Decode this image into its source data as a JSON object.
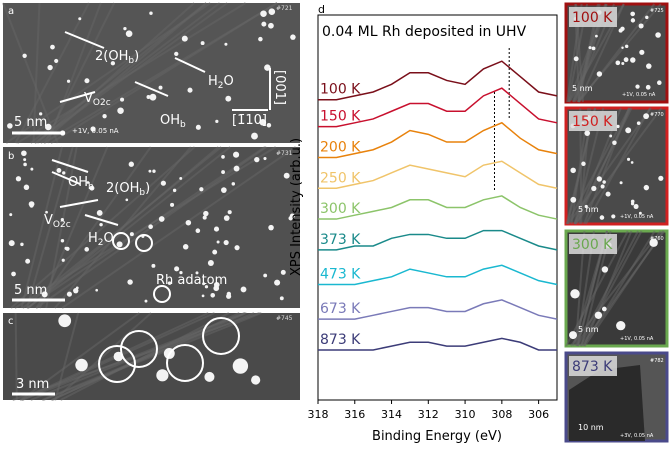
{
  "chart_data": {
    "type": "line",
    "panel_label": "d",
    "title": "0.04 ML Rh deposited in UHV",
    "x_label": "Binding Energy (eV)",
    "y_label": "XPS Intensity (arb.u.)",
    "x": [
      318,
      317,
      316,
      315,
      314,
      313,
      312,
      311,
      310,
      309,
      308,
      307,
      306,
      305
    ],
    "xlim": [
      318,
      305
    ],
    "xticks": [
      318,
      316,
      314,
      312,
      310,
      308,
      306
    ],
    "ylim": [
      0,
      100
    ],
    "reference_lines": [
      308.4,
      307.6
    ],
    "series": [
      {
        "name": "100 K",
        "color": "#7a0f1a",
        "values": [
          78,
          78,
          79,
          80,
          82,
          85,
          85,
          83,
          82,
          86,
          88,
          84,
          80,
          79
        ]
      },
      {
        "name": "150 K",
        "color": "#c8102e",
        "values": [
          71,
          71,
          72,
          73,
          75,
          77,
          77,
          75,
          75,
          79,
          81,
          77,
          73,
          72
        ]
      },
      {
        "name": "200 K",
        "color": "#e8820c",
        "values": [
          63,
          63,
          64,
          65,
          67,
          70,
          69,
          67,
          67,
          70,
          72,
          68,
          65,
          64
        ]
      },
      {
        "name": "250 K",
        "color": "#f0c46a",
        "values": [
          55,
          55,
          56,
          57,
          59,
          61,
          60,
          59,
          58,
          61,
          62,
          59,
          56,
          55
        ]
      },
      {
        "name": "300 K",
        "color": "#8cc46a",
        "values": [
          47,
          47,
          48,
          49,
          50,
          52,
          52,
          50,
          50,
          52,
          53,
          50,
          48,
          47
        ]
      },
      {
        "name": "373 K",
        "color": "#1a8a8a",
        "values": [
          39,
          39,
          40,
          40,
          42,
          43,
          43,
          42,
          42,
          44,
          44,
          42,
          40,
          39
        ]
      },
      {
        "name": "473 K",
        "color": "#1ab8d0",
        "values": [
          30,
          30,
          30,
          31,
          32,
          34,
          33,
          32,
          32,
          34,
          35,
          33,
          31,
          30
        ]
      },
      {
        "name": "673 K",
        "color": "#7a7ab8",
        "values": [
          21,
          21,
          21,
          22,
          23,
          24,
          24,
          23,
          23,
          25,
          26,
          24,
          22,
          21
        ]
      },
      {
        "name": "873 K",
        "color": "#3c3c78",
        "values": [
          13,
          13,
          13,
          13,
          14,
          15,
          15,
          14,
          14,
          15,
          16,
          15,
          13,
          13
        ]
      }
    ]
  },
  "panels": {
    "a": {
      "label": "a",
      "id": "#721",
      "oh2": {
        "text": "2(OH",
        "sub": "b",
        "after": ")"
      },
      "h2o": {
        "text": "H",
        "sub": "2",
        "after": "O"
      },
      "vo": {
        "text": "V",
        "sub": "O2c"
      },
      "oh": {
        "text": "OH",
        "sub": "b"
      },
      "dir1": "[001]",
      "dir2": "[1̄10]",
      "scale": "5 nm",
      "bias": "+1V, 0.05 nA"
    },
    "b": {
      "label": "b",
      "id": "#731",
      "oh": {
        "text": "OH",
        "sub": "b"
      },
      "oh2": {
        "text": "2(OH",
        "sub": "b",
        "after": ")"
      },
      "vo": {
        "text": "V",
        "sub": "O2c"
      },
      "h2o": {
        "text": "H",
        "sub": "2",
        "after": "O"
      },
      "rh": "Rh adatom",
      "scale": "5 nm"
    },
    "c": {
      "label": "c",
      "id": "#745",
      "scale": "3 nm"
    },
    "r1": {
      "temp": "100 K",
      "id": "#725",
      "scale": "5 nm",
      "bias": "+1V, 0.05 nA"
    },
    "r2": {
      "temp": "150 K",
      "id": "#770",
      "scale": "5 nm",
      "bias": "+1V, 0.05 nA"
    },
    "r3": {
      "temp": "300 K",
      "id": "#760",
      "scale": "5 nm",
      "bias": "+1V, 0.05 nA"
    },
    "r4": {
      "temp": "873 K",
      "id": "#782",
      "scale": "10 nm",
      "bias": "+3V, 0.05 nA"
    }
  }
}
